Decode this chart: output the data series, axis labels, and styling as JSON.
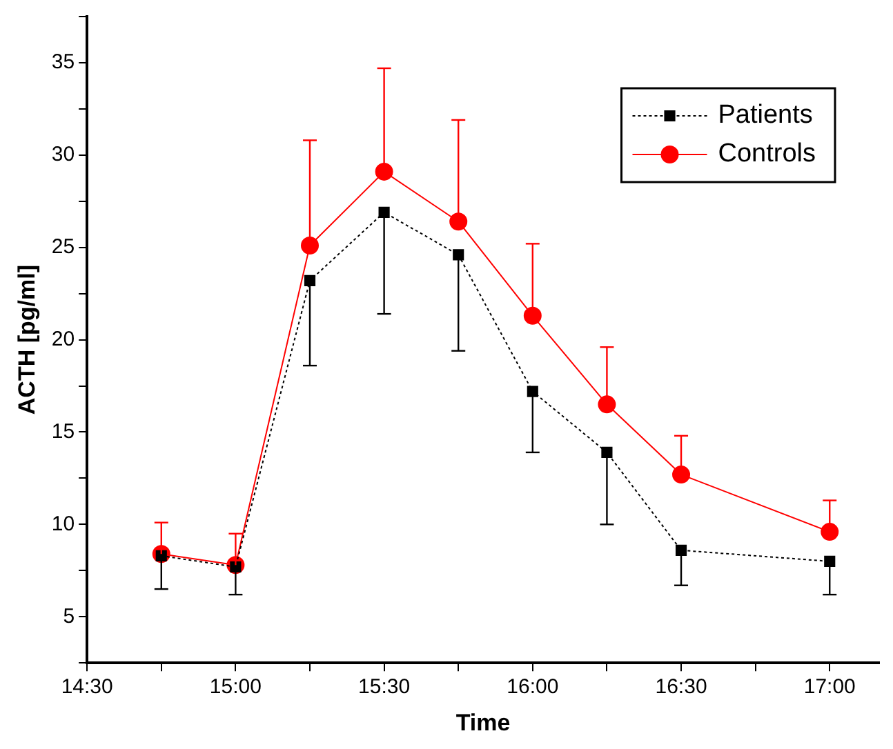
{
  "chart_data": {
    "type": "line",
    "xlabel": "Time",
    "ylabel": "ACTH [pg/ml]",
    "x": [
      14.75,
      15,
      15.25,
      15.5,
      15.75,
      16,
      16.25,
      16.5,
      17
    ],
    "series": [
      {
        "name": "Patients",
        "color": "#000000",
        "marker": "square",
        "line_style": "dotted",
        "values": [
          8.3,
          7.7,
          23.2,
          26.9,
          24.6,
          17.2,
          13.9,
          8.6,
          8.0
        ],
        "errors": [
          [
            6.5,
            8.3
          ],
          [
            6.2,
            7.7
          ],
          [
            18.6,
            23.2
          ],
          [
            21.4,
            26.9
          ],
          [
            19.4,
            24.6
          ],
          [
            13.9,
            17.2
          ],
          [
            10.0,
            13.9
          ],
          [
            6.7,
            8.6
          ],
          [
            6.2,
            8.0
          ]
        ]
      },
      {
        "name": "Controls",
        "color": "#ff0000",
        "marker": "circle",
        "line_style": "solid",
        "values": [
          8.4,
          7.8,
          25.1,
          29.1,
          26.4,
          21.3,
          16.5,
          12.7,
          9.6
        ],
        "errors": [
          [
            8.4,
            10.1
          ],
          [
            7.8,
            9.5
          ],
          [
            25.1,
            30.8
          ],
          [
            29.1,
            34.7
          ],
          [
            26.4,
            31.9
          ],
          [
            21.3,
            25.2
          ],
          [
            16.5,
            19.6
          ],
          [
            12.7,
            14.8
          ],
          [
            9.6,
            11.3
          ]
        ]
      }
    ],
    "xlim": [
      14.5,
      17.1667
    ],
    "xticks": [
      {
        "value": 14.5,
        "label": "14:30"
      },
      {
        "value": 14.75,
        "label": null
      },
      {
        "value": 15,
        "label": "15:00"
      },
      {
        "value": 15.25,
        "label": null
      },
      {
        "value": 15.5,
        "label": "15:30"
      },
      {
        "value": 15.75,
        "label": null
      },
      {
        "value": 16,
        "label": "16:00"
      },
      {
        "value": 16.25,
        "label": null
      },
      {
        "value": 16.5,
        "label": "16:30"
      },
      {
        "value": 16.75,
        "label": null
      },
      {
        "value": 17,
        "label": "17:00"
      }
    ],
    "ylim": [
      2.5,
      37.5
    ],
    "yticks": [
      {
        "value": 2.5,
        "label": null
      },
      5,
      {
        "value": 7.5,
        "label": null
      },
      10,
      {
        "value": 12.5,
        "label": null
      },
      15,
      {
        "value": 17.5,
        "label": null
      },
      20,
      {
        "value": 22.5,
        "label": null
      },
      25,
      {
        "value": 27.5,
        "label": null
      },
      30,
      {
        "value": 32.5,
        "label": null
      },
      35,
      {
        "value": 37.5,
        "label": null
      }
    ],
    "grid": false,
    "legend": "top right"
  }
}
